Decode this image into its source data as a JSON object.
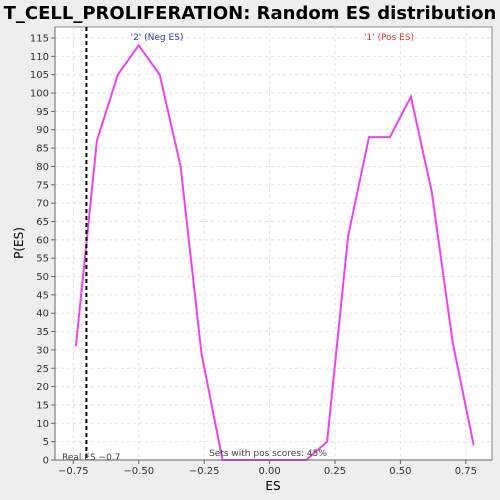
{
  "chart_data": {
    "type": "line",
    "title": "T_CELL_PROLIFERATION: Random ES distribution",
    "xlabel": "ES",
    "ylabel": "P(ES)",
    "xlim": [
      -0.82,
      0.85
    ],
    "ylim": [
      0,
      118
    ],
    "x_ticks": [
      -0.75,
      -0.5,
      -0.25,
      0.0,
      0.25,
      0.5,
      0.75
    ],
    "x_tick_labels": [
      "−0.75",
      "−0.50",
      "−0.25",
      "0.00",
      "0.25",
      "0.50",
      "0.75"
    ],
    "y_ticks": [
      0,
      5,
      10,
      15,
      20,
      25,
      30,
      35,
      40,
      45,
      50,
      55,
      60,
      65,
      70,
      75,
      80,
      85,
      90,
      95,
      100,
      105,
      110,
      115
    ],
    "grid": true,
    "series": [
      {
        "color": "#ee44ee",
        "x": [
          -0.74,
          -0.66,
          -0.58,
          -0.5,
          -0.42,
          -0.34,
          -0.26,
          -0.18,
          -0.1,
          0.0,
          0.14,
          0.22,
          0.3,
          0.38,
          0.46,
          0.54,
          0.62,
          0.7,
          0.78
        ],
        "y": [
          31,
          87,
          105,
          113,
          105,
          80,
          29,
          0,
          0,
          0,
          0,
          5,
          61,
          88,
          88,
          99,
          73,
          32,
          4
        ]
      }
    ],
    "real_es": -0.7,
    "annotations": {
      "neg_label": "'2' (Neg ES)",
      "pos_label": "'1' (Pos ES)",
      "real_es_label": "Real ES −0.7",
      "pos_scores_label": "Sets with pos scores: 45%"
    },
    "colors": {
      "line": "#ee44ee",
      "neg_label": "#3333cc",
      "pos_label": "#ee3333",
      "real_es_line": "#000000"
    }
  }
}
